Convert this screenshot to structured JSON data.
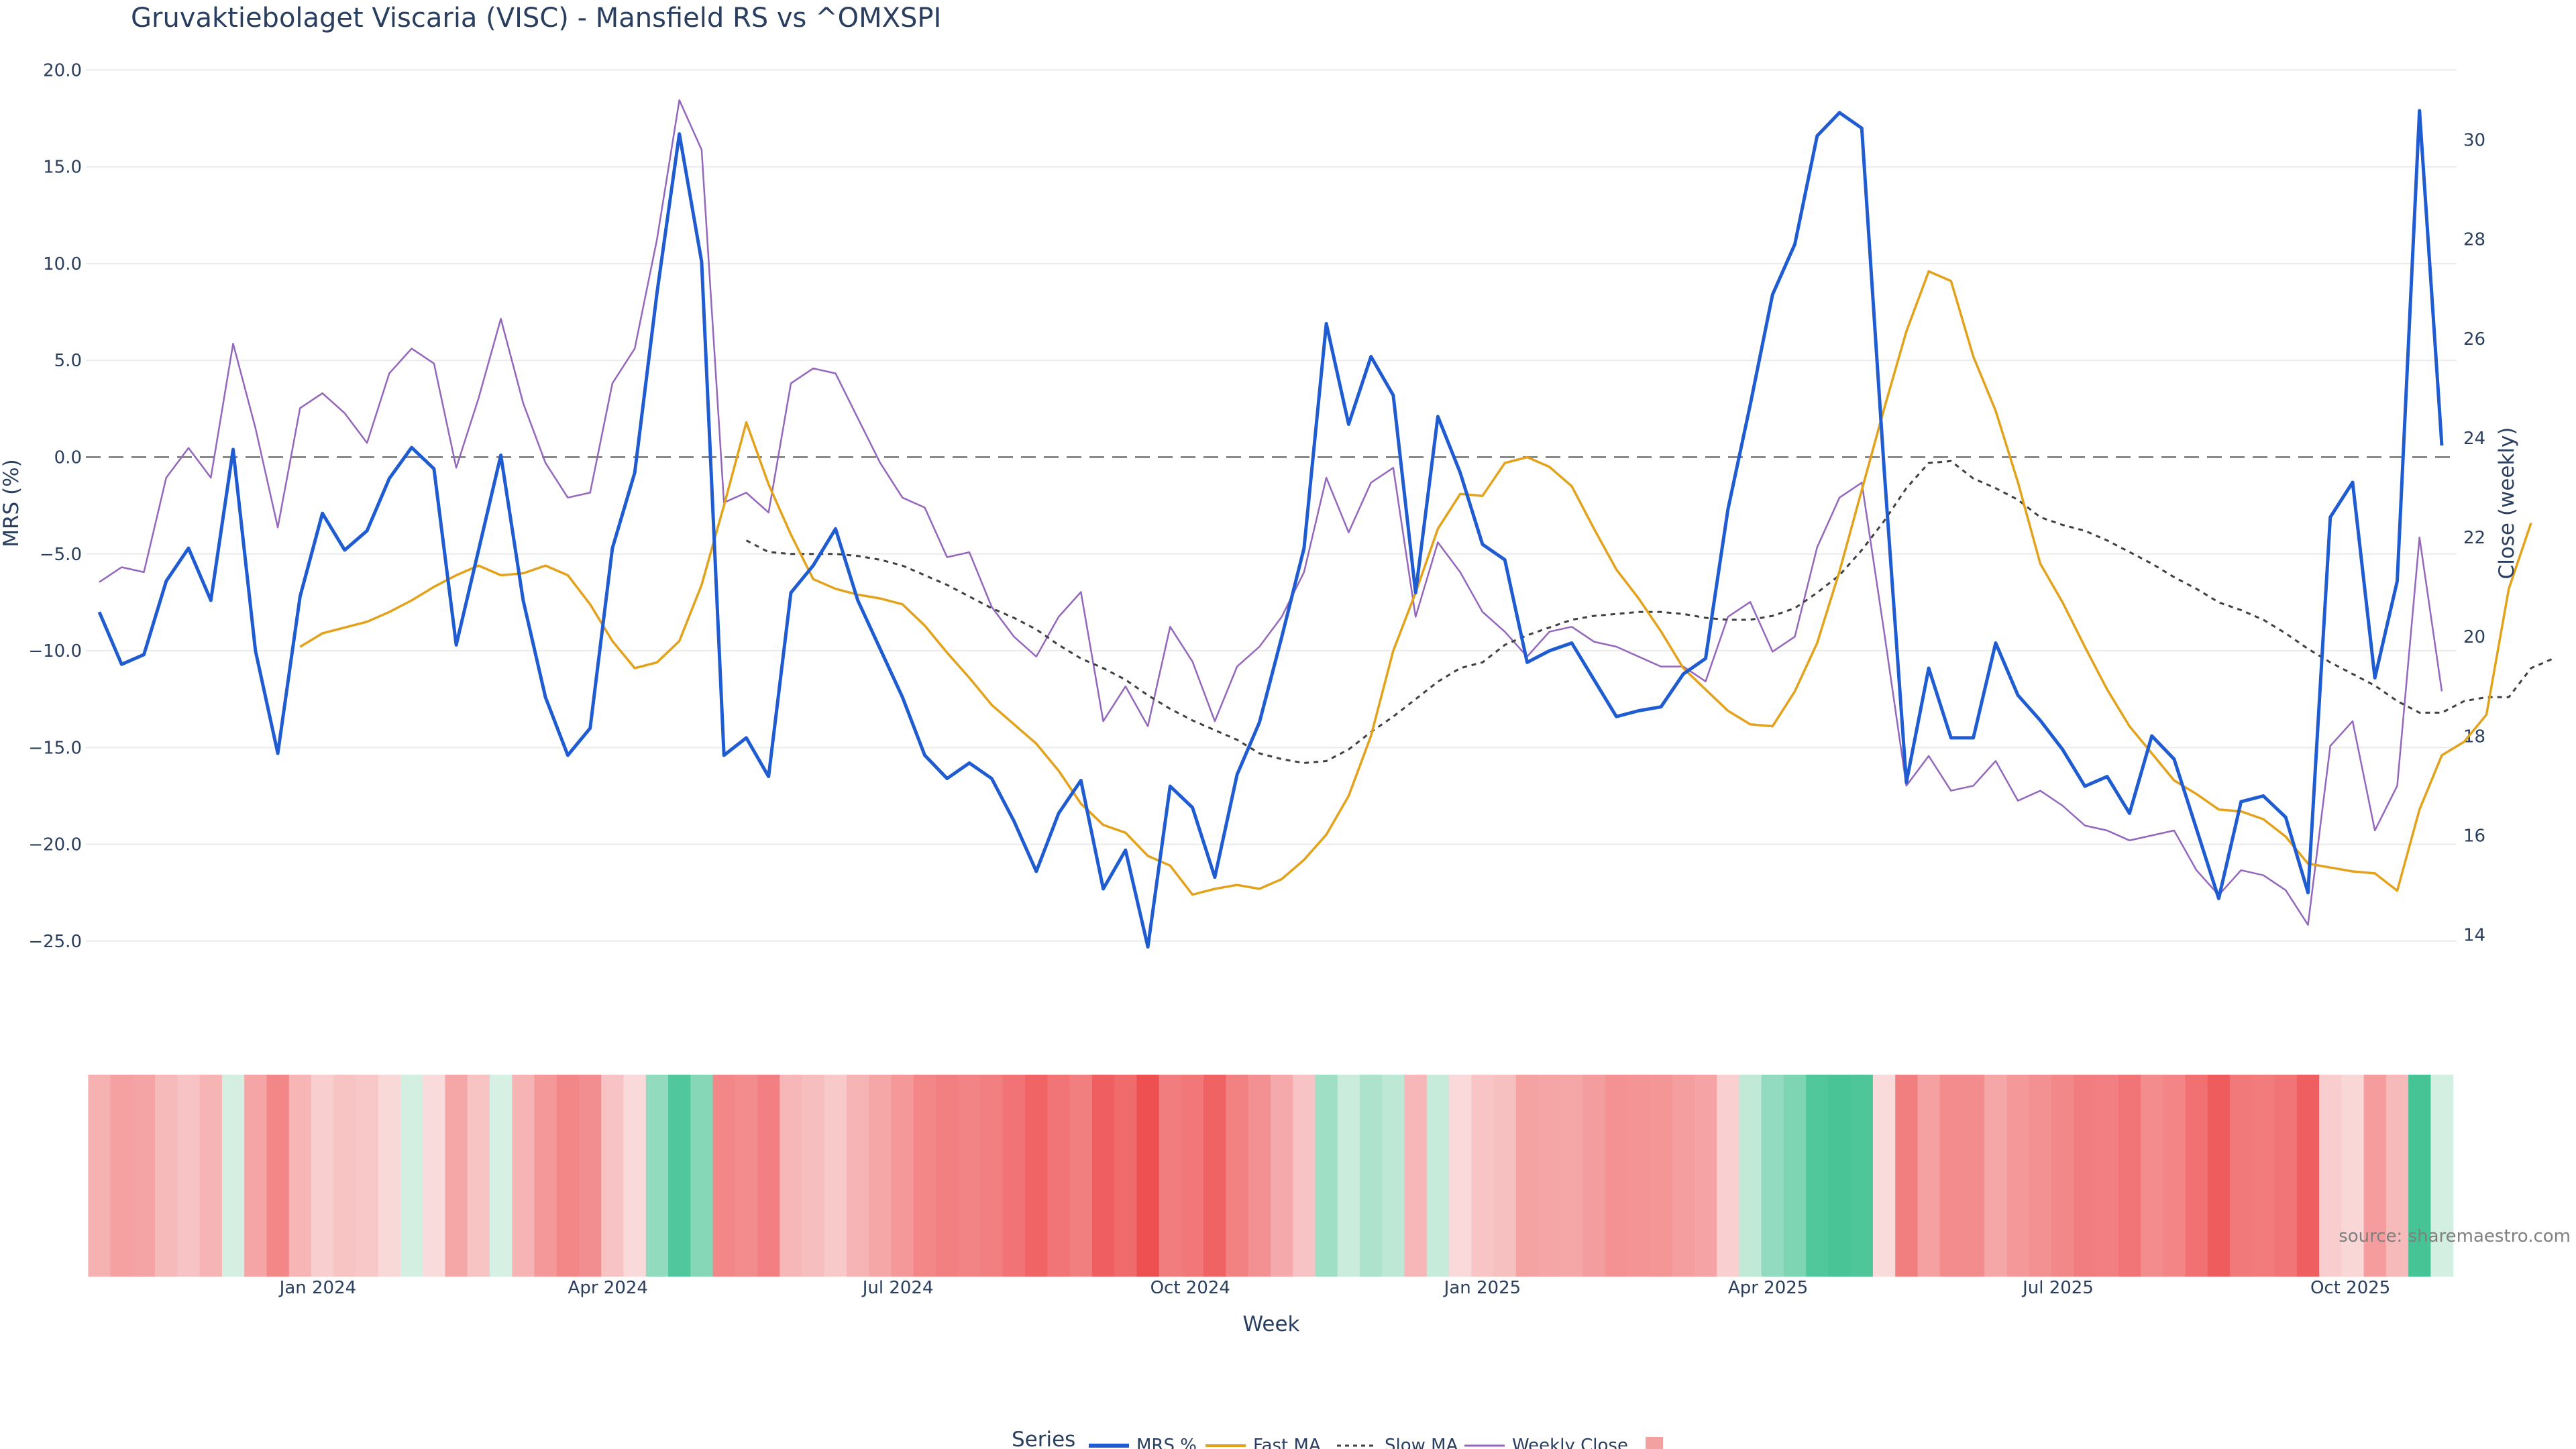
{
  "chart_data": {
    "type": "line",
    "title": "Gruvaktiebolaget Viscaria (VISC) - Mansfield RS vs ^OMXSPI",
    "xlabel": "Week",
    "ylabel": "MRS (%)",
    "y2label": "Close (weekly)",
    "ylim": [
      -27.5,
      20.5
    ],
    "y2lim": [
      12.9,
      31.6
    ],
    "yticks": [
      20.0,
      15.0,
      10.0,
      5.0,
      0.0,
      -5.0,
      -10.0,
      -15.0,
      -20.0,
      -25.0
    ],
    "ytick_labels": [
      "20.0",
      "15.0",
      "10.0",
      "5.0",
      "0.0",
      "−5.0",
      "−10.0",
      "−15.0",
      "−20.0",
      "−25.0"
    ],
    "y2ticks": [
      30,
      28,
      26,
      24,
      22,
      20,
      18,
      16,
      14
    ],
    "y2tick_labels": [
      "30",
      "28",
      "26",
      "24",
      "22",
      "20",
      "18",
      "16",
      "14"
    ],
    "x_week_count": 106,
    "xticks": [
      {
        "week": 9.8,
        "label": "Jan 2024"
      },
      {
        "week": 22.8,
        "label": "Apr 2024"
      },
      {
        "week": 35.8,
        "label": "Jul 2024"
      },
      {
        "week": 48.9,
        "label": "Oct 2024"
      },
      {
        "week": 62.0,
        "label": "Jan 2025"
      },
      {
        "week": 74.8,
        "label": "Apr 2025"
      },
      {
        "week": 87.8,
        "label": "Jul 2025"
      },
      {
        "week": 100.9,
        "label": "Oct 2025"
      }
    ],
    "zero_line": 0,
    "series": [
      {
        "name": "MRS %",
        "color": "#1f5bd1",
        "axis": "left",
        "start": 0,
        "values": [
          -8,
          -10.7,
          -10.2,
          -6.4,
          -4.7,
          -7.4,
          0.4,
          -10,
          -15.3,
          -7.2,
          -2.9,
          -4.8,
          -3.8,
          -1.1,
          0.5,
          -0.6,
          -9.7,
          -4.8,
          0.1,
          -7.4,
          -12.4,
          -15.4,
          -14,
          -4.7,
          -0.8,
          8.5,
          16.7,
          10.1,
          -15.4,
          -14.5,
          -16.5,
          -7,
          -5.6,
          -3.7,
          -7.4,
          -9.9,
          -12.4,
          -15.4,
          -16.6,
          -15.8,
          -16.6,
          -18.8,
          -21.4,
          -18.4,
          -16.7,
          -22.3,
          -20.3,
          -25.3,
          -17,
          -18.1,
          -21.7,
          -16.4,
          -13.7,
          -9.3,
          -4.7,
          6.9,
          1.7,
          5.2,
          3.2,
          -7,
          2.1,
          -0.8,
          -4.5,
          -5.3,
          -10.6,
          -10,
          -9.6,
          -11.5,
          -13.4,
          -13.1,
          -12.9,
          -11.2,
          -10.4,
          -2.7,
          2.7,
          8.4,
          11,
          16.6,
          17.8,
          17,
          -0.6,
          -16.8,
          -10.9,
          -14.5,
          -14.5,
          -9.6,
          -12.3,
          -13.6,
          -15.1,
          -17,
          -16.5,
          -18.4,
          -14.4,
          -15.6,
          -19.2,
          -22.8,
          -17.8,
          -17.5,
          -18.6,
          -22.5,
          -3.1,
          -1.3,
          -11.4,
          -6.4,
          17.9,
          0.6
        ]
      },
      {
        "name": "Fast MA",
        "color": "#e3a21a",
        "axis": "left",
        "start": 9,
        "values": [
          -9.8,
          -9.1,
          -8.8,
          -8.5,
          -8,
          -7.4,
          -6.7,
          -6.1,
          -5.6,
          -6.1,
          -6,
          -5.6,
          -6.1,
          -7.6,
          -9.5,
          -10.9,
          -10.6,
          -9.5,
          -6.6,
          -2.5,
          1.8,
          -1.4,
          -4,
          -6.3,
          -6.8,
          -7.1,
          -7.3,
          -7.6,
          -8.7,
          -10.1,
          -11.4,
          -12.8,
          -13.8,
          -14.8,
          -16.2,
          -17.9,
          -19,
          -19.4,
          -20.6,
          -21.1,
          -22.6,
          -22.3,
          -22.1,
          -22.3,
          -21.8,
          -20.8,
          -19.5,
          -17.5,
          -14.4,
          -10,
          -7,
          -3.7,
          -1.9,
          -2,
          -0.3,
          0,
          -0.5,
          -1.5,
          -3.7,
          -5.8,
          -7.3,
          -9,
          -10.9,
          -12,
          -13.1,
          -13.8,
          -13.9,
          -12.1,
          -9.6,
          -5.9,
          -1.7,
          2.5,
          6.5,
          9.6,
          9.1,
          5.2,
          2.4,
          -1.3,
          -5.5,
          -7.5,
          -9.8,
          -12,
          -13.9,
          -15.3,
          -16.7,
          -17.4,
          -18.2,
          -18.3,
          -18.7,
          -19.6,
          -21,
          -21.2,
          -21.4,
          -21.5,
          -22.4,
          -18.2,
          -15.4,
          -14.7,
          -13.3,
          -6.8,
          -3.4
        ]
      },
      {
        "name": "Slow MA",
        "color": "#404040",
        "axis": "left",
        "start": 29,
        "dash": true,
        "values": [
          -4.3,
          -4.9,
          -5,
          -5,
          -5,
          -5.1,
          -5.3,
          -5.6,
          -6.1,
          -6.6,
          -7.2,
          -7.8,
          -8.3,
          -8.9,
          -9.7,
          -10.4,
          -10.9,
          -11.5,
          -12.3,
          -13,
          -13.6,
          -14.1,
          -14.6,
          -15.3,
          -15.6,
          -15.8,
          -15.7,
          -15.1,
          -14.2,
          -13.4,
          -12.5,
          -11.6,
          -10.9,
          -10.6,
          -9.7,
          -9.2,
          -8.8,
          -8.4,
          -8.2,
          -8.1,
          -8,
          -8,
          -8.1,
          -8.3,
          -8.4,
          -8.4,
          -8.2,
          -7.8,
          -7,
          -6.1,
          -4.8,
          -3.3,
          -1.6,
          -0.3,
          -0.2,
          -1.1,
          -1.6,
          -2.2,
          -3.1,
          -3.5,
          -3.8,
          -4.3,
          -4.9,
          -5.5,
          -6.2,
          -6.8,
          -7.5,
          -7.9,
          -8.4,
          -9.1,
          -9.9,
          -10.6,
          -11.2,
          -11.8,
          -12.6,
          -13.2,
          -13.2,
          -12.6,
          -12.4,
          -12.4,
          -10.9,
          -10.4
        ]
      },
      {
        "name": "Weekly Close",
        "color": "#9467bd",
        "axis": "right",
        "start": 0,
        "values": [
          21.1,
          21.4,
          21.3,
          23.2,
          23.8,
          23.2,
          25.9,
          24.2,
          22.2,
          24.6,
          24.9,
          24.5,
          23.9,
          25.3,
          25.8,
          25.5,
          23.4,
          24.8,
          26.4,
          24.7,
          23.5,
          22.8,
          22.9,
          25.1,
          25.8,
          28,
          30.8,
          29.8,
          22.7,
          22.9,
          22.5,
          25.1,
          25.4,
          25.3,
          24.4,
          23.5,
          22.8,
          22.6,
          21.6,
          21.7,
          20.6,
          20,
          19.6,
          20.4,
          20.9,
          18.3,
          19,
          18.2,
          20.2,
          19.5,
          18.3,
          19.4,
          19.8,
          20.4,
          21.3,
          23.2,
          22.1,
          23.1,
          23.4,
          20.4,
          21.9,
          21.3,
          20.5,
          20.1,
          19.6,
          20.1,
          20.2,
          19.9,
          19.8,
          19.6,
          19.4,
          19.4,
          19.1,
          20.4,
          20.7,
          19.7,
          20,
          21.8,
          22.8,
          23.1,
          20.1,
          17,
          17.6,
          16.9,
          17,
          17.5,
          16.7,
          16.9,
          16.6,
          16.2,
          16.1,
          15.9,
          16,
          16.1,
          15.3,
          14.8,
          15.3,
          15.2,
          14.9,
          14.2,
          17.8,
          18.3,
          16.1,
          17,
          22,
          18.9
        ]
      }
    ],
    "heatmap_strip": {
      "type": "heatmap",
      "variable": "MRS %",
      "colorscale": "red (negative) to green (positive)"
    },
    "legend": {
      "title": "Series",
      "items": [
        "MRS %",
        "Fast MA",
        "Slow MA",
        "Weekly Close",
        ""
      ],
      "position": "bottom-center"
    },
    "source_note": "source: sharemaestro.com"
  }
}
